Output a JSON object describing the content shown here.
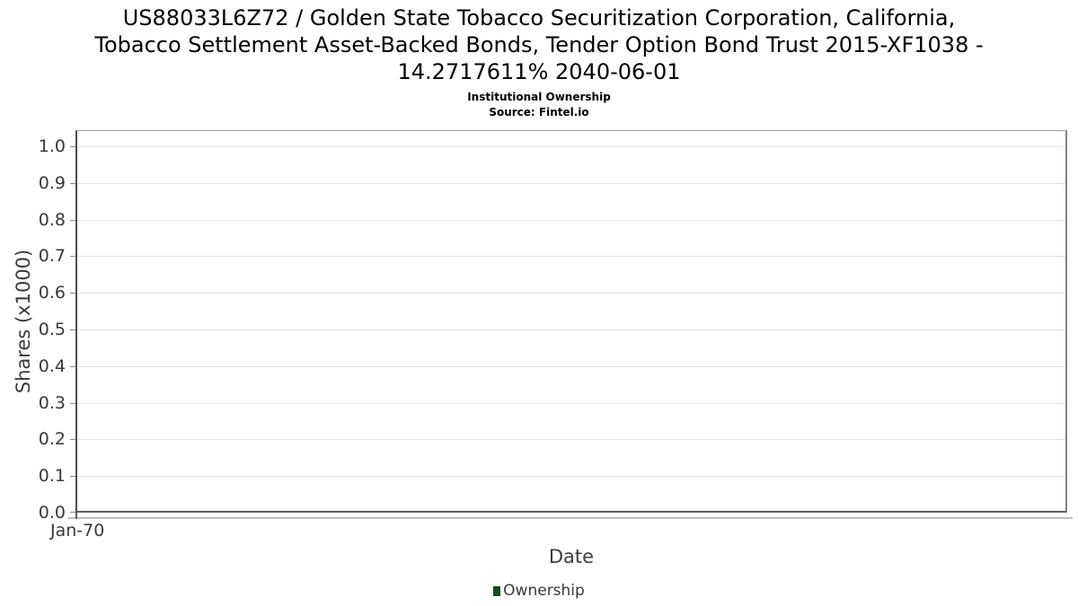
{
  "title": {
    "lines": [
      "US88033L6Z72 / Golden State Tobacco Securitization Corporation, California,",
      "Tobacco Settlement Asset-Backed Bonds, Tender Option Bond Trust 2015-XF1038 -",
      "14.2717611% 2040-06-01"
    ],
    "subtitle": "Institutional Ownership",
    "source": "Source: Fintel.io"
  },
  "chart_data": {
    "type": "line",
    "title": "US88033L6Z72 / Golden State Tobacco Securitization Corporation, California, Tobacco Settlement Asset-Backed Bonds, Tender Option Bond Trust 2015-XF1038 - 14.2717611% 2040-06-01",
    "subtitle": "Institutional Ownership",
    "source": "Source: Fintel.io",
    "xlabel": "Date",
    "ylabel": "Shares (x1000)",
    "x_tick_labels": [
      "Jan-70"
    ],
    "y_tick_labels": [
      "0.0",
      "0.1",
      "0.2",
      "0.3",
      "0.4",
      "0.5",
      "0.6",
      "0.7",
      "0.8",
      "0.9",
      "1.0"
    ],
    "ylim": [
      0.0,
      1.045
    ],
    "grid": "horizontal",
    "legend_position": "bottom-center",
    "legend": [
      {
        "label": "Ownership",
        "color": "#1d4a24"
      }
    ],
    "series": [
      {
        "name": "Ownership",
        "color": "#1d4a24",
        "x": [],
        "y": []
      }
    ]
  },
  "colors": {
    "background": "#ffffff",
    "title_text": "#000000",
    "axis_text": "#383838",
    "gridline": "#e4e4e4",
    "plot_border": "#848484",
    "legend_green": "#1d4a24"
  }
}
